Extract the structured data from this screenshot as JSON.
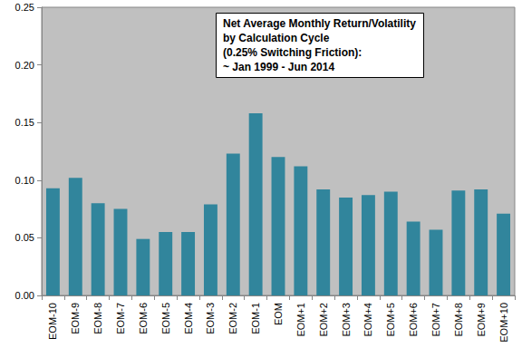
{
  "chart_data": {
    "type": "bar",
    "title": [
      "Net Average Monthly Return/Volatility",
      "by Calculation Cycle",
      "(0.25% Switching Friction):",
      "~ Jan 1999 - Jun 2014"
    ],
    "categories": [
      "EOM-10",
      "EOM-9",
      "EOM-8",
      "EOM-7",
      "EOM-6",
      "EOM-5",
      "EOM-4",
      "EOM-3",
      "EOM-2",
      "EOM-1",
      "EOM",
      "EOM+1",
      "EOM+2",
      "EOM+3",
      "EOM+4",
      "EOM+5",
      "EOM+6",
      "EOM+7",
      "EOM+8",
      "EOM+9",
      "EOM+10"
    ],
    "values": [
      0.093,
      0.102,
      0.08,
      0.075,
      0.049,
      0.055,
      0.055,
      0.079,
      0.123,
      0.158,
      0.12,
      0.112,
      0.092,
      0.085,
      0.087,
      0.09,
      0.064,
      0.057,
      0.091,
      0.092,
      0.071
    ],
    "color": "#31859c",
    "ylim": [
      0,
      0.25
    ],
    "yticks": [
      {
        "value": 0,
        "label": "0.00"
      },
      {
        "value": 0.05,
        "label": "0.05"
      },
      {
        "value": 0.1,
        "label": "0.10"
      },
      {
        "value": 0.15,
        "label": "0.15"
      },
      {
        "value": 0.2,
        "label": "0.20"
      },
      {
        "value": 0.25,
        "label": "0.25"
      }
    ],
    "grid": false
  }
}
